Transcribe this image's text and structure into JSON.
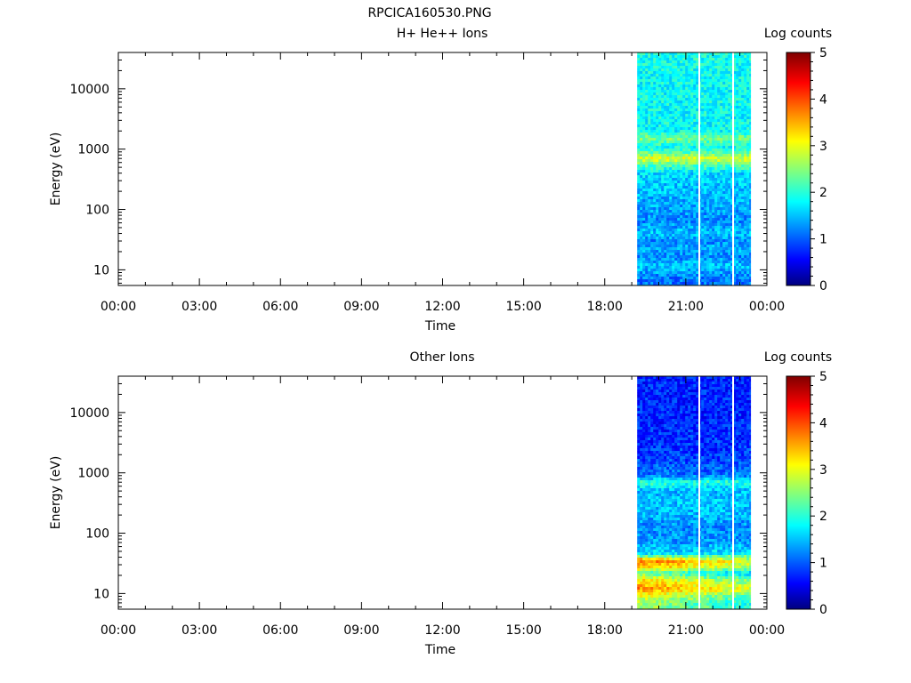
{
  "figure": {
    "title": "RPCICA160530.PNG"
  },
  "chart_data": [
    {
      "type": "heatmap",
      "title": "H+ He++ Ions",
      "xlabel": "Time",
      "ylabel": "Energy (eV)",
      "x_ticks": [
        "00:00",
        "03:00",
        "06:00",
        "09:00",
        "12:00",
        "15:00",
        "18:00",
        "21:00",
        "00:00"
      ],
      "x_range_hours": [
        0,
        24
      ],
      "y_scale": "log",
      "y_range": [
        5.5,
        40000
      ],
      "y_ticks": [
        {
          "value": 10,
          "label": "10"
        },
        {
          "value": 100,
          "label": "100"
        },
        {
          "value": 1000,
          "label": "1000"
        },
        {
          "value": 10000,
          "label": "10000"
        }
      ],
      "colorbar": {
        "label": "Log counts",
        "range": [
          0,
          5
        ],
        "ticks": [
          "0",
          "1",
          "2",
          "3",
          "4",
          "5"
        ],
        "colormap": "jet"
      },
      "data_time_range_hours": [
        19.2,
        23.4
      ],
      "data_gaps_hours": [
        21.5,
        22.75
      ],
      "energy_profile": [
        {
          "energy": 7,
          "log_counts": 1.2
        },
        {
          "energy": 9,
          "log_counts": 1.4
        },
        {
          "energy": 12,
          "log_counts": 1.6
        },
        {
          "energy": 16,
          "log_counts": 1.3
        },
        {
          "energy": 22,
          "log_counts": 1.5
        },
        {
          "energy": 30,
          "log_counts": 1.3
        },
        {
          "energy": 40,
          "log_counts": 1.6
        },
        {
          "energy": 60,
          "log_counts": 1.3
        },
        {
          "energy": 90,
          "log_counts": 1.4
        },
        {
          "energy": 150,
          "log_counts": 1.5
        },
        {
          "energy": 250,
          "log_counts": 1.6
        },
        {
          "energy": 400,
          "log_counts": 1.7
        },
        {
          "energy": 550,
          "log_counts": 2.3
        },
        {
          "energy": 700,
          "log_counts": 3.0
        },
        {
          "energy": 850,
          "log_counts": 2.4
        },
        {
          "energy": 1100,
          "log_counts": 1.9
        },
        {
          "energy": 1500,
          "log_counts": 2.5
        },
        {
          "energy": 2000,
          "log_counts": 1.9
        },
        {
          "energy": 5000,
          "log_counts": 1.9
        },
        {
          "energy": 15000,
          "log_counts": 1.9
        },
        {
          "energy": 35000,
          "log_counts": 2.0
        }
      ]
    },
    {
      "type": "heatmap",
      "title": "Other Ions",
      "xlabel": "Time",
      "ylabel": "Energy (eV)",
      "x_ticks": [
        "00:00",
        "03:00",
        "06:00",
        "09:00",
        "12:00",
        "15:00",
        "18:00",
        "21:00",
        "00:00"
      ],
      "x_range_hours": [
        0,
        24
      ],
      "y_scale": "log",
      "y_range": [
        5.5,
        40000
      ],
      "y_ticks": [
        {
          "value": 10,
          "label": "10"
        },
        {
          "value": 100,
          "label": "100"
        },
        {
          "value": 1000,
          "label": "1000"
        },
        {
          "value": 10000,
          "label": "10000"
        }
      ],
      "colorbar": {
        "label": "Log counts",
        "range": [
          0,
          5
        ],
        "ticks": [
          "0",
          "1",
          "2",
          "3",
          "4",
          "5"
        ],
        "colormap": "jet"
      },
      "data_time_range_hours": [
        19.2,
        23.4
      ],
      "data_gaps_hours": [
        21.5,
        22.75
      ],
      "energy_profile": [
        {
          "energy": 7,
          "log_counts": 2.4
        },
        {
          "energy": 9,
          "log_counts": 2.7
        },
        {
          "energy": 12,
          "log_counts": 3.4
        },
        {
          "energy": 16,
          "log_counts": 3.0
        },
        {
          "energy": 22,
          "log_counts": 2.1
        },
        {
          "energy": 28,
          "log_counts": 3.2
        },
        {
          "energy": 35,
          "log_counts": 3.5
        },
        {
          "energy": 45,
          "log_counts": 1.8
        },
        {
          "energy": 70,
          "log_counts": 1.4
        },
        {
          "energy": 120,
          "log_counts": 1.3
        },
        {
          "energy": 200,
          "log_counts": 1.5
        },
        {
          "energy": 350,
          "log_counts": 1.6
        },
        {
          "energy": 500,
          "log_counts": 1.5
        },
        {
          "energy": 700,
          "log_counts": 2.1
        },
        {
          "energy": 900,
          "log_counts": 1.2
        },
        {
          "energy": 2000,
          "log_counts": 0.9
        },
        {
          "energy": 8000,
          "log_counts": 0.8
        },
        {
          "energy": 35000,
          "log_counts": 0.8
        }
      ]
    }
  ]
}
